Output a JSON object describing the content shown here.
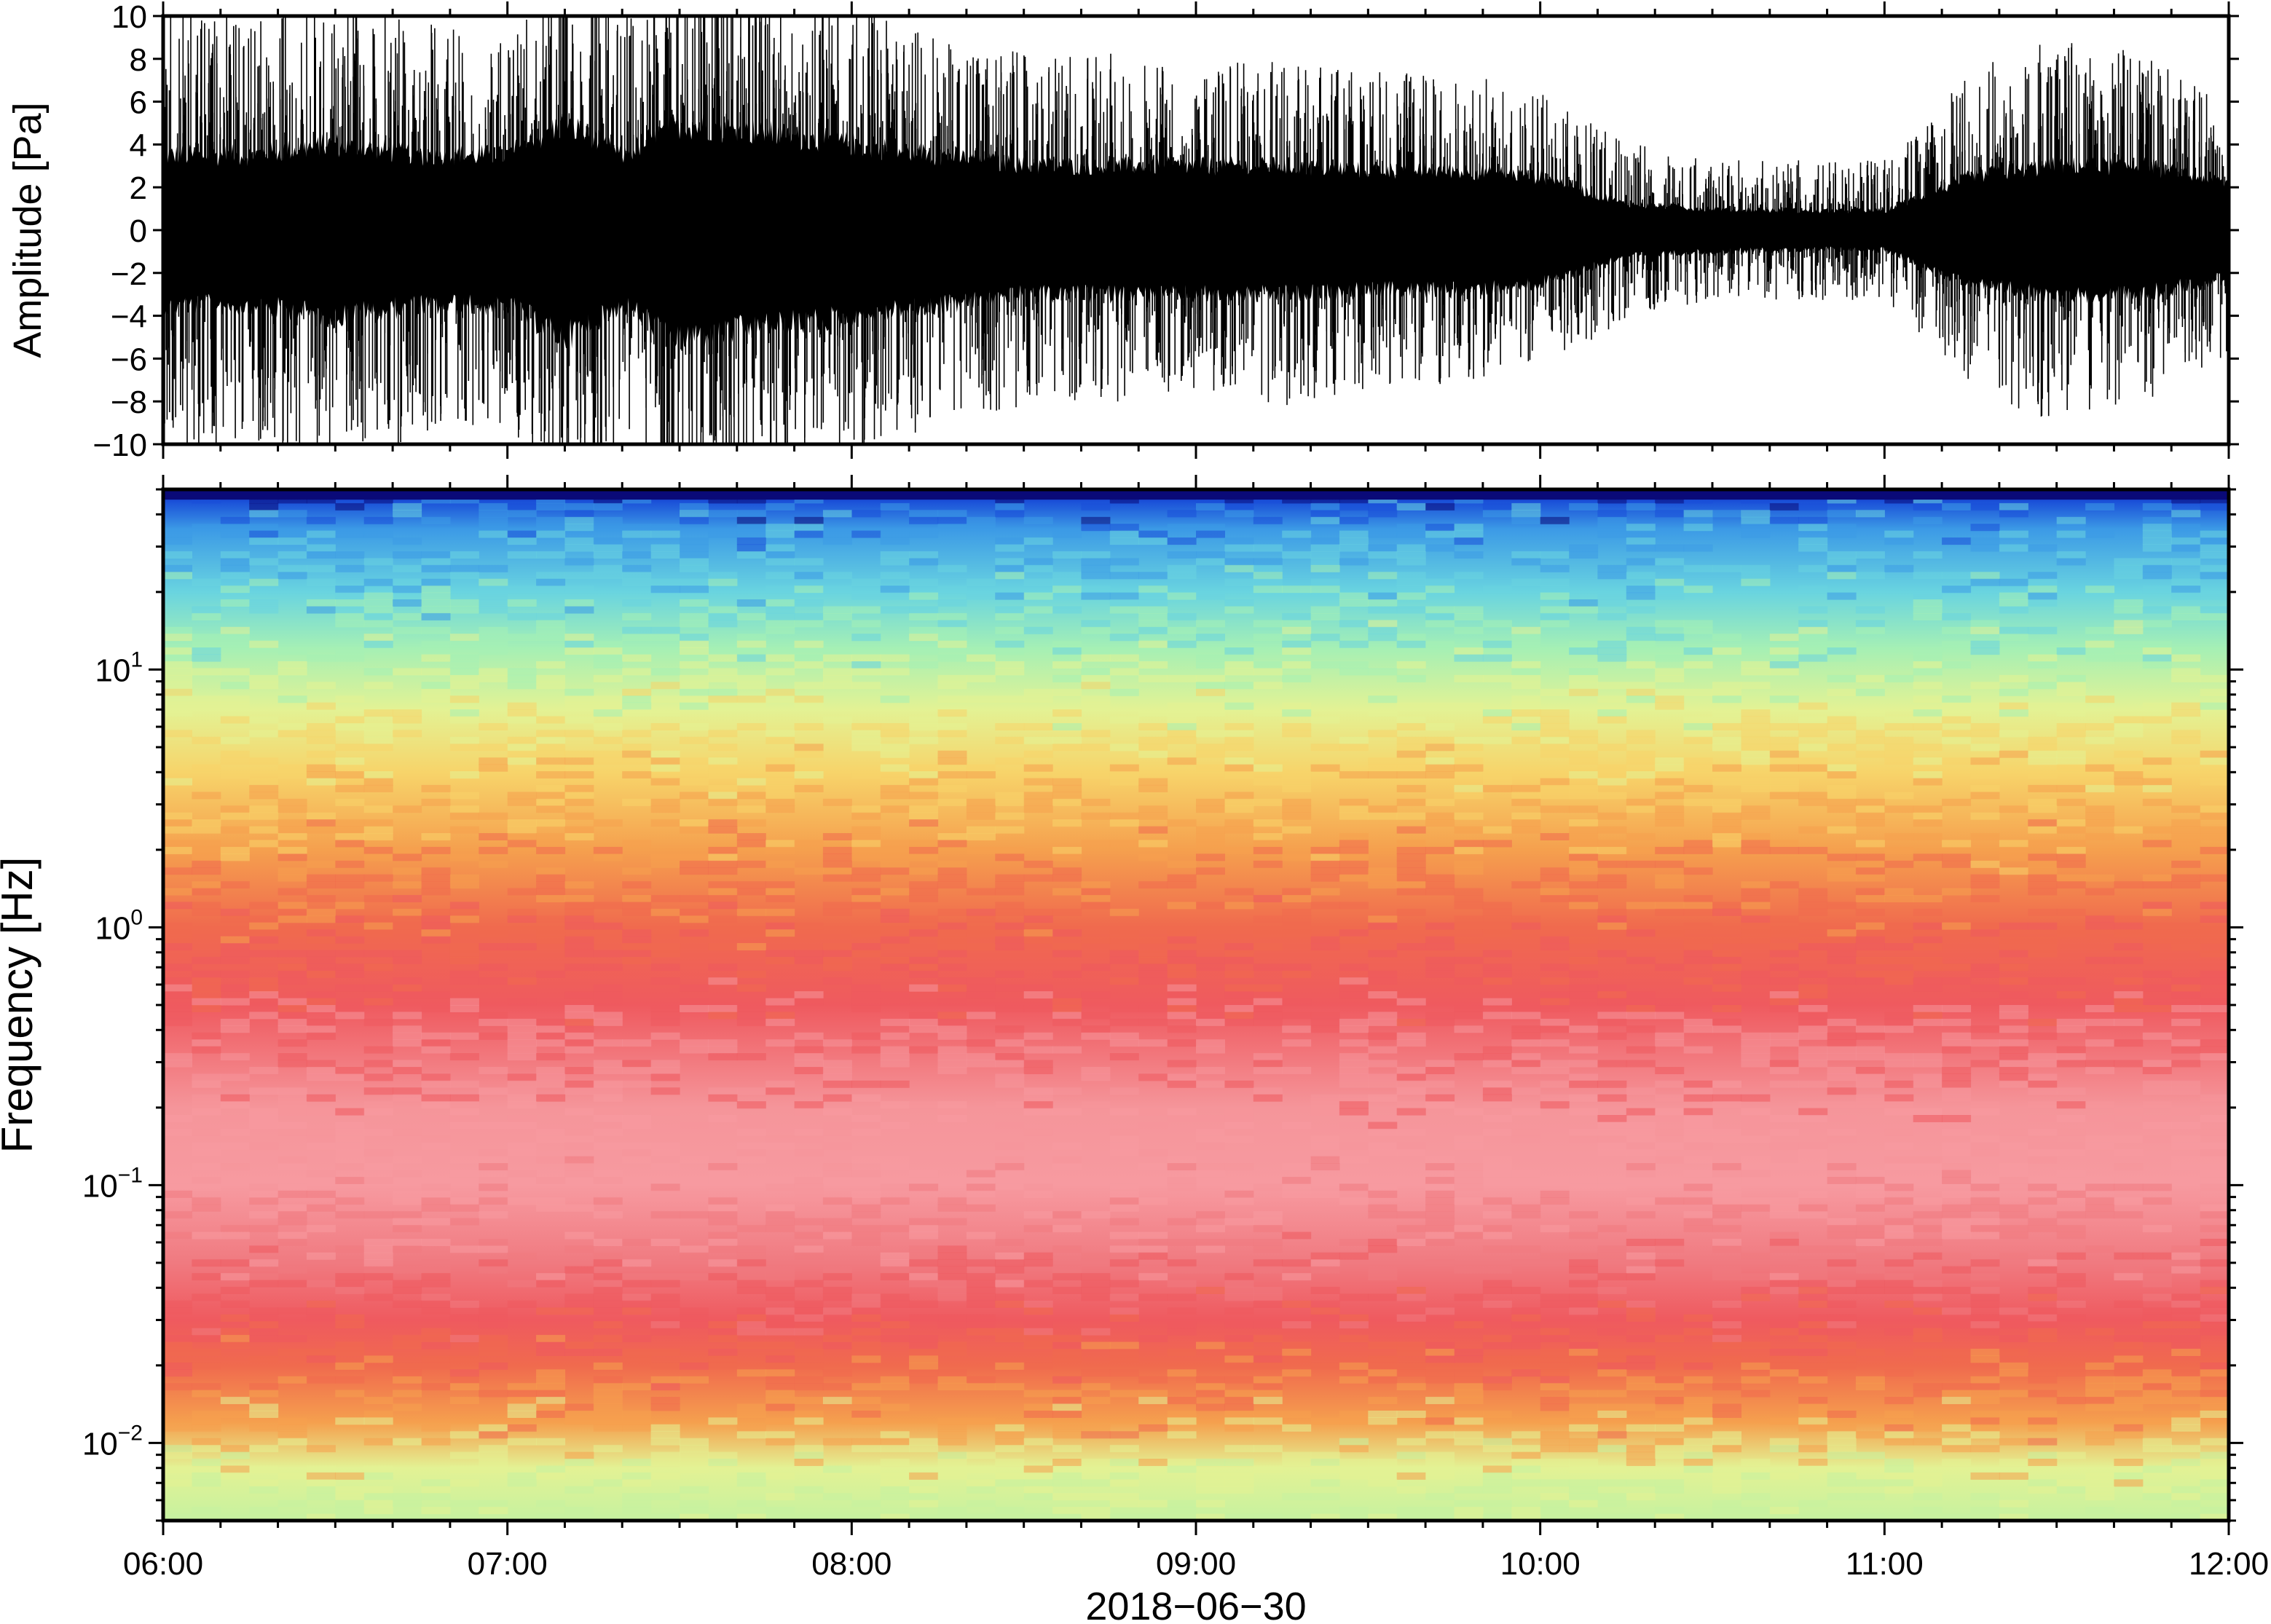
{
  "chart_data": [
    {
      "type": "line",
      "panel": "waveform",
      "ylabel": "Amplitude [Pa]",
      "ylim": [
        -10,
        10
      ],
      "yticks": [
        -10,
        -8,
        -6,
        -4,
        -2,
        0,
        2,
        4,
        6,
        8,
        10
      ],
      "ytick_labels": [
        "−10",
        "−8",
        "−6",
        "−4",
        "−2",
        "0",
        "2",
        "4",
        "6",
        "8",
        "10"
      ],
      "xlim": [
        "06:00",
        "12:00"
      ],
      "grid": false,
      "envelope": {
        "x": [
          "06:00",
          "06:15",
          "06:30",
          "06:45",
          "07:00",
          "07:10",
          "07:20",
          "07:30",
          "07:45",
          "08:00",
          "08:15",
          "08:30",
          "08:45",
          "09:00",
          "09:15",
          "09:30",
          "09:45",
          "10:00",
          "10:15",
          "10:30",
          "10:45",
          "11:00",
          "11:15",
          "11:30",
          "11:45",
          "12:00"
        ],
        "upper_typical": [
          6.5,
          6.0,
          6.5,
          6.0,
          5.5,
          8.0,
          6.0,
          8.0,
          7.0,
          6.5,
          5.5,
          5.0,
          5.0,
          4.5,
          5.0,
          4.5,
          4.5,
          4.0,
          2.5,
          2.0,
          2.0,
          2.0,
          4.5,
          5.5,
          5.0,
          3.5
        ],
        "lower_typical": [
          -6.5,
          -6.0,
          -6.5,
          -6.0,
          -5.5,
          -8.0,
          -6.0,
          -8.0,
          -7.0,
          -6.5,
          -5.5,
          -5.0,
          -5.0,
          -4.5,
          -5.0,
          -4.5,
          -4.5,
          -4.0,
          -2.5,
          -2.0,
          -2.0,
          -2.0,
          -4.5,
          -5.5,
          -5.0,
          -3.5
        ],
        "core_upper": [
          3.5,
          3.5,
          4.0,
          3.5,
          3.5,
          5.0,
          3.5,
          5.0,
          4.5,
          4.0,
          3.5,
          3.0,
          3.0,
          3.0,
          3.0,
          2.8,
          2.8,
          2.5,
          1.2,
          1.0,
          0.9,
          0.9,
          2.5,
          3.0,
          3.0,
          2.2
        ],
        "core_lower": [
          -3.5,
          -3.5,
          -4.0,
          -3.5,
          -3.5,
          -5.0,
          -3.5,
          -5.0,
          -4.5,
          -4.0,
          -3.5,
          -3.0,
          -3.0,
          -3.0,
          -3.0,
          -2.8,
          -2.8,
          -2.5,
          -1.2,
          -1.0,
          -0.9,
          -0.9,
          -2.5,
          -3.0,
          -3.0,
          -2.2
        ]
      }
    },
    {
      "type": "heatmap",
      "panel": "spectrogram",
      "ylabel": "Frequency [Hz]",
      "yscale": "log",
      "ylim": [
        0.005,
        50
      ],
      "yticks": [
        0.01,
        0.1,
        1,
        10
      ],
      "ytick_labels": [
        {
          "base": "10",
          "exp": "−2"
        },
        {
          "base": "10",
          "exp": "−1"
        },
        {
          "base": "10",
          "exp": "0"
        },
        {
          "base": "10",
          "exp": "1"
        }
      ],
      "xlabel": "2018−06−30",
      "xticks": [
        "06:00",
        "07:00",
        "08:00",
        "09:00",
        "10:00",
        "11:00",
        "12:00"
      ],
      "xlim": [
        "06:00",
        "12:00"
      ],
      "colormap": [
        "#0a0a78",
        "#1a4fd8",
        "#3c9ae6",
        "#69d4e0",
        "#a6f0b4",
        "#e3f294",
        "#f7d46a",
        "#f5a04e",
        "#f06a4e",
        "#ef5a5f",
        "#f79aa0"
      ],
      "profile": {
        "frequency_hz": [
          0.005,
          0.008,
          0.012,
          0.02,
          0.03,
          0.05,
          0.1,
          0.2,
          0.5,
          1,
          2,
          4,
          7,
          12,
          20,
          35,
          45,
          50
        ],
        "color": [
          "#c6f2a0",
          "#e3f294",
          "#f5a04e",
          "#f06a4e",
          "#ef5a5f",
          "#f07a80",
          "#f79aa0",
          "#f5959a",
          "#ef5a5f",
          "#f06a4e",
          "#f5a04e",
          "#f7d46a",
          "#e3f294",
          "#a6f0b4",
          "#69d4e0",
          "#3c9ae6",
          "#1a4fd8",
          "#0a0a78"
        ]
      },
      "grid": false
    }
  ]
}
